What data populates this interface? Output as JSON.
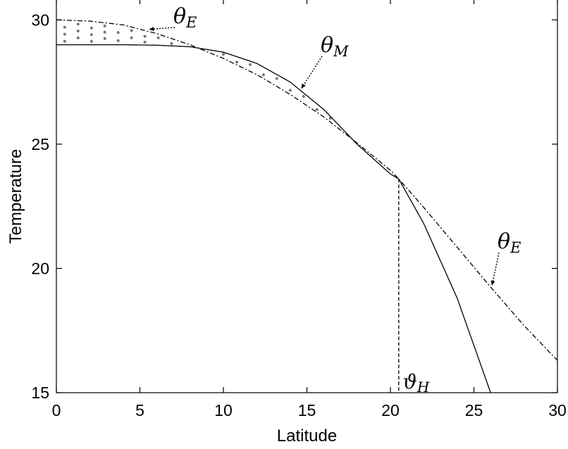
{
  "chart_data": {
    "type": "line",
    "xlabel": "Latitude",
    "ylabel": "Temperature",
    "xlim": [
      0,
      30
    ],
    "ylim": [
      15,
      30.8
    ],
    "xticks": [
      "0",
      "5",
      "10",
      "15",
      "20",
      "25",
      "30"
    ],
    "yticks": [
      "15",
      "20",
      "25",
      "30"
    ],
    "grid": false,
    "series": [
      {
        "name": "θM",
        "style": "solid",
        "x": [
          0,
          2,
          4,
          6,
          8,
          10,
          12,
          14,
          16,
          18,
          20,
          20.5,
          22,
          24,
          26
        ],
        "y": [
          29.0,
          29.0,
          29.0,
          28.98,
          28.92,
          28.7,
          28.25,
          27.5,
          26.4,
          25.0,
          23.8,
          23.6,
          21.8,
          18.8,
          15.0
        ]
      },
      {
        "name": "θE",
        "style": "dash-dot",
        "x": [
          0,
          2,
          4,
          6,
          8,
          10,
          12,
          14,
          16,
          18,
          20,
          20.5,
          22,
          24,
          26,
          28,
          30
        ],
        "y": [
          30.0,
          29.95,
          29.8,
          29.45,
          29.0,
          28.45,
          27.8,
          27.0,
          26.1,
          25.05,
          23.95,
          23.6,
          22.45,
          20.85,
          19.25,
          17.7,
          16.3
        ]
      }
    ],
    "hatch_regions": [
      {
        "x_from": 0.5,
        "x_to": 9.2,
        "between": "θE above θM"
      },
      {
        "x_from": 9.2,
        "x_to": 20.5,
        "between": "θM above θE"
      }
    ],
    "vertical_marker": {
      "x": 20.5,
      "style": "dashed",
      "label": "ϑH"
    },
    "annotations": [
      {
        "label": "θE",
        "sub": "E",
        "series": "θE",
        "x": 5.5
      },
      {
        "label": "θM",
        "sub": "M",
        "series": "θM",
        "x": 14.6
      },
      {
        "label": "θE",
        "sub": "E",
        "series": "θE",
        "x": 26.0
      }
    ]
  }
}
